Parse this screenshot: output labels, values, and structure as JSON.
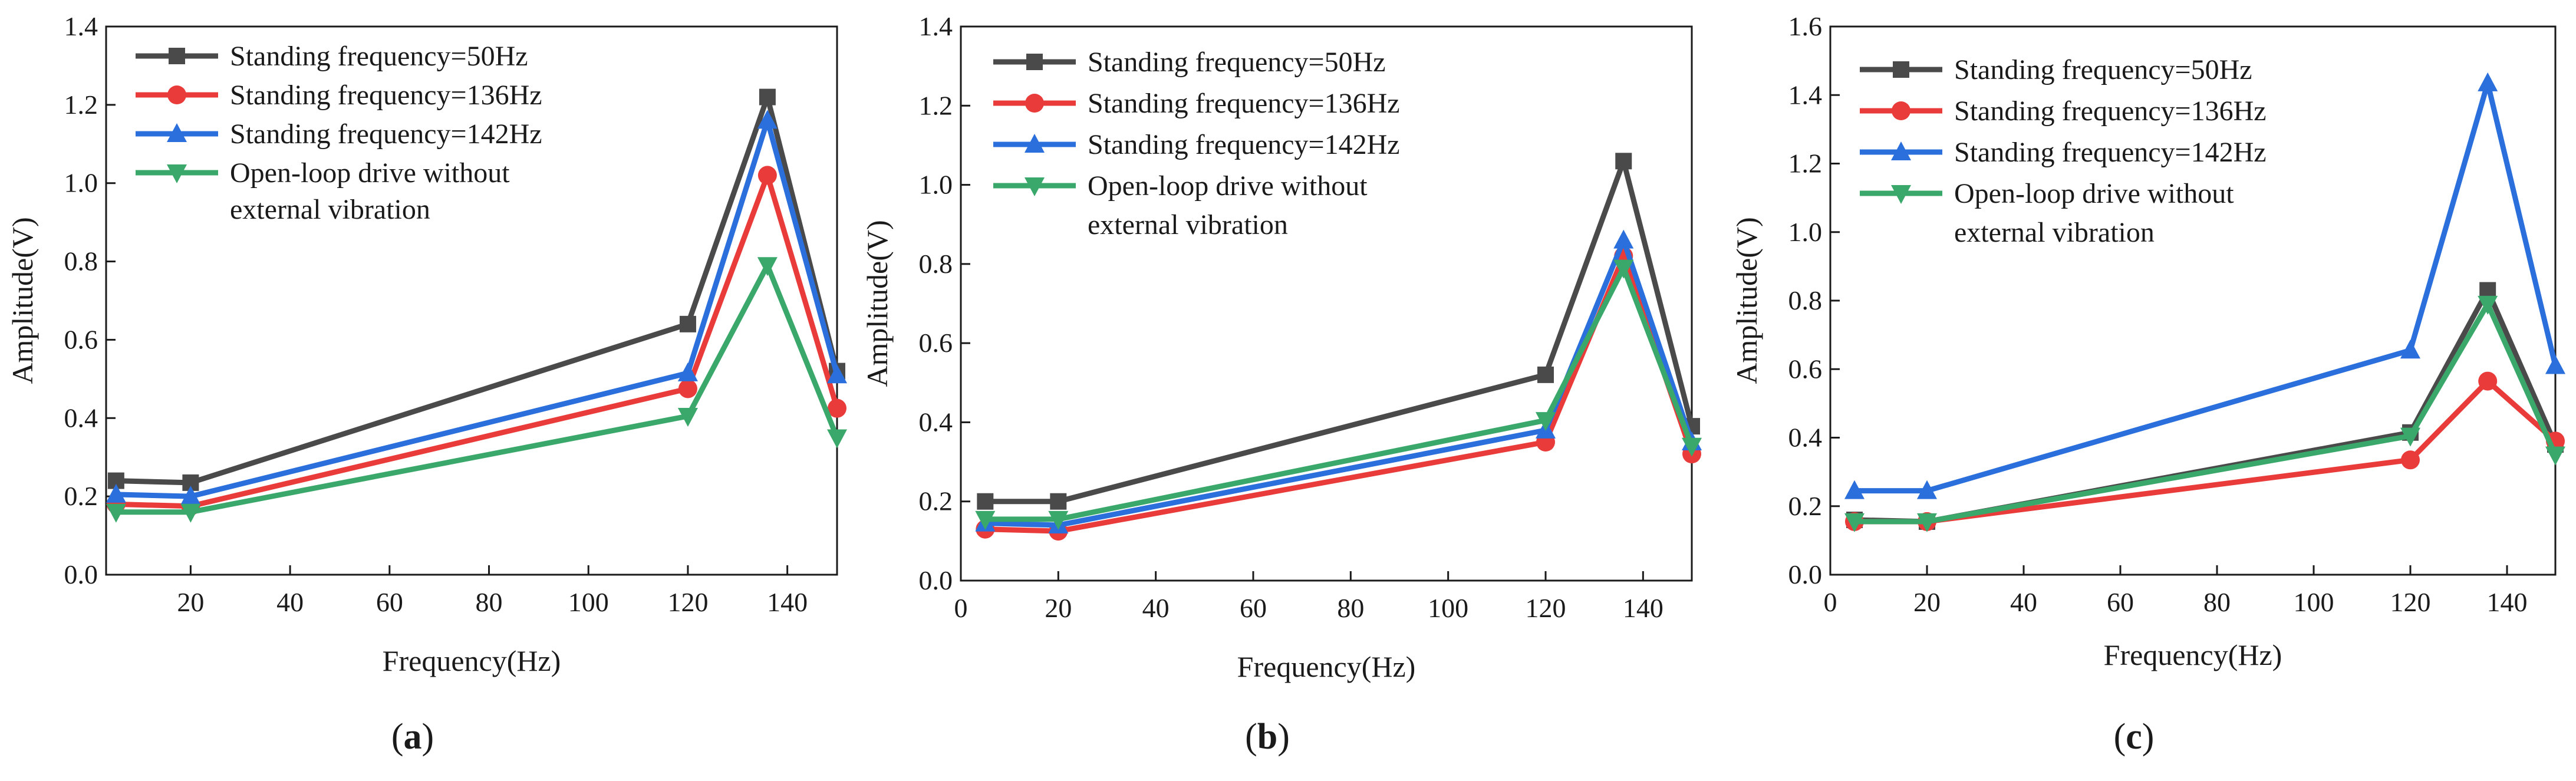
{
  "chart_data": [
    {
      "type": "line",
      "panel_label": "a",
      "xlabel": "Frequency(Hz)",
      "ylabel": "Amplitude(V)",
      "xlim": [
        3,
        150
      ],
      "ylim": [
        0,
        1.4
      ],
      "xticks": [
        20,
        40,
        60,
        80,
        100,
        120,
        140
      ],
      "yticks": [
        0.0,
        0.2,
        0.4,
        0.6,
        0.8,
        1.0,
        1.2,
        1.4
      ],
      "legend_position": "top-left",
      "x": [
        5,
        20,
        120,
        136,
        150
      ],
      "series": [
        {
          "name": "Standing frequency=50Hz",
          "values": [
            0.24,
            0.235,
            0.64,
            1.22,
            0.52
          ],
          "color": "#4a4a4a",
          "marker": "square"
        },
        {
          "name": "Standing frequency=136Hz",
          "values": [
            0.18,
            0.175,
            0.475,
            1.02,
            0.425
          ],
          "color": "#ea3b3b",
          "marker": "circle"
        },
        {
          "name": "Standing frequency=142Hz",
          "values": [
            0.205,
            0.2,
            0.515,
            1.16,
            0.51
          ],
          "color": "#2a6fdb",
          "marker": "triangle-up"
        },
        {
          "name": "Open-loop drive without external vibration",
          "values": [
            0.16,
            0.16,
            0.405,
            0.79,
            0.35
          ],
          "color": "#3aa86a",
          "marker": "triangle-down"
        }
      ]
    },
    {
      "type": "line",
      "panel_label": "b",
      "xlabel": "Frequency(Hz)",
      "ylabel": "Amplitude(V)",
      "xlim": [
        0,
        150
      ],
      "ylim": [
        0,
        1.4
      ],
      "xticks": [
        0,
        20,
        40,
        60,
        80,
        100,
        120,
        140
      ],
      "yticks": [
        0.0,
        0.2,
        0.4,
        0.6,
        0.8,
        1.0,
        1.2,
        1.4
      ],
      "legend_position": "top-left",
      "x": [
        5,
        20,
        120,
        136,
        150
      ],
      "series": [
        {
          "name": "Standing frequency=50Hz",
          "values": [
            0.2,
            0.2,
            0.52,
            1.06,
            0.39
          ],
          "color": "#4a4a4a",
          "marker": "square"
        },
        {
          "name": "Standing frequency=136Hz",
          "values": [
            0.13,
            0.125,
            0.35,
            0.82,
            0.32
          ],
          "color": "#ea3b3b",
          "marker": "circle"
        },
        {
          "name": "Standing frequency=142Hz",
          "values": [
            0.145,
            0.14,
            0.38,
            0.86,
            0.35
          ],
          "color": "#2a6fdb",
          "marker": "triangle-up"
        },
        {
          "name": "Open-loop drive without external vibration",
          "values": [
            0.155,
            0.155,
            0.405,
            0.79,
            0.34
          ],
          "color": "#3aa86a",
          "marker": "triangle-down"
        }
      ]
    },
    {
      "type": "line",
      "panel_label": "c",
      "xlabel": "Frequency(Hz)",
      "ylabel": "Amplitude(V)",
      "xlim": [
        0,
        150
      ],
      "ylim": [
        0,
        1.6
      ],
      "xticks": [
        0,
        20,
        40,
        60,
        80,
        100,
        120,
        140
      ],
      "yticks": [
        0.0,
        0.2,
        0.4,
        0.6,
        0.8,
        1.0,
        1.2,
        1.4,
        1.6
      ],
      "legend_position": "top-left",
      "x": [
        5,
        20,
        120,
        136,
        150
      ],
      "series": [
        {
          "name": "Standing frequency=50Hz",
          "values": [
            0.16,
            0.155,
            0.415,
            0.83,
            0.38
          ],
          "color": "#4a4a4a",
          "marker": "square"
        },
        {
          "name": "Standing frequency=136Hz",
          "values": [
            0.155,
            0.155,
            0.335,
            0.565,
            0.39
          ],
          "color": "#ea3b3b",
          "marker": "circle"
        },
        {
          "name": "Standing frequency=142Hz",
          "values": [
            0.245,
            0.245,
            0.655,
            1.435,
            0.61
          ],
          "color": "#2a6fdb",
          "marker": "triangle-up"
        },
        {
          "name": "Open-loop drive without external vibration",
          "values": [
            0.155,
            0.155,
            0.405,
            0.79,
            0.35
          ],
          "color": "#3aa86a",
          "marker": "triangle-down"
        }
      ]
    }
  ]
}
